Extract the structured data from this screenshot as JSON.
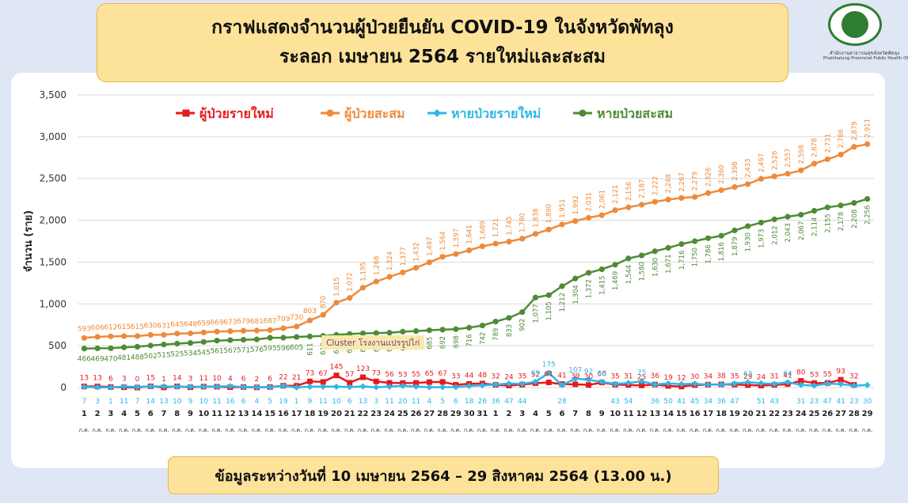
{
  "header": {
    "title_line1": "กราฟแสดงจำนวนผู้ป่วยยืนยัน COVID-19 ในจังหวัดพัทลุง",
    "title_line2": "ระลอก เมษายน 2564 รายใหม่และสะสม"
  },
  "logo": {
    "icon": "provincial-health-office-seal",
    "org_thai": "สำนักงานสาธารณสุขจังหวัดพัทลุง",
    "org_english": "Phatthalung Provincial Public Health Office"
  },
  "footer": {
    "text": "ข้อมูลระหว่างวันที่ 10 เมษายน 2564 – 29 สิงหาคม 2564 (13.00 น.)"
  },
  "chart_data": {
    "type": "line",
    "title": "",
    "xlabel": "",
    "ylabel": "จำนวน (ราย)",
    "ylim": [
      0,
      3500
    ],
    "yticks": [
      0,
      500,
      1000,
      1500,
      2000,
      2500,
      3000,
      3500
    ],
    "grid": true,
    "legend_position": "top",
    "annotation": "Cluster โรงงานแปรรูปไก่",
    "x_labels": [
      "1",
      "2",
      "3",
      "4",
      "5",
      "6",
      "7",
      "8",
      "9",
      "10",
      "11",
      "12",
      "13",
      "14",
      "15",
      "16",
      "17",
      "18",
      "19",
      "20",
      "21",
      "22",
      "23",
      "24",
      "25",
      "26",
      "27",
      "28",
      "29",
      "30",
      "31",
      "1",
      "2",
      "3",
      "4",
      "5",
      "6",
      "7",
      "8",
      "9",
      "10",
      "11",
      "12",
      "13",
      "14",
      "15",
      "16",
      "17",
      "18",
      "19",
      "20",
      "21",
      "22",
      "23",
      "24",
      "25",
      "26",
      "27",
      "28",
      "29"
    ],
    "month_label": "ก.ค.",
    "series": [
      {
        "name": "ผู้ป่วยรายใหม่",
        "color": "#e8191c",
        "values": [
          13,
          13,
          6,
          3,
          0,
          15,
          1,
          14,
          3,
          11,
          10,
          4,
          6,
          2,
          6,
          22,
          21,
          73,
          67,
          145,
          57,
          123,
          73,
          56,
          53,
          55,
          65,
          67,
          33,
          44,
          48,
          32,
          24,
          35,
          52,
          61,
          41,
          39,
          30,
          60,
          35,
          31,
          25,
          36,
          19,
          12,
          30,
          34,
          38,
          35,
          29,
          24,
          31,
          41,
          80,
          53,
          55,
          93,
          32,
          null
        ]
      },
      {
        "name": "ผู้ป่วยสะสม",
        "color": "#ee8a3a",
        "values": [
          593,
          606,
          612,
          615,
          615,
          630,
          631,
          645,
          648,
          659,
          669,
          673,
          679,
          681,
          687,
          709,
          730,
          803,
          870,
          1015,
          1072,
          1195,
          1268,
          1324,
          1377,
          1432,
          1497,
          1564,
          1597,
          1641,
          1689,
          1721,
          1745,
          1780,
          1838,
          1890,
          1951,
          1992,
          2031,
          2061,
          2121,
          2156,
          2187,
          2222,
          2248,
          2267,
          2279,
          2326,
          2360,
          2398,
          2433,
          2497,
          2526,
          2557,
          2598,
          2678,
          2731,
          2786,
          2879,
          2911
        ]
      },
      {
        "name": "หายป่วยรายใหม่",
        "color": "#2bb7e8",
        "values": [
          7,
          3,
          1,
          11,
          7,
          14,
          13,
          10,
          9,
          10,
          11,
          16,
          6,
          4,
          5,
          19,
          1,
          9,
          11,
          10,
          6,
          13,
          3,
          11,
          20,
          11,
          4,
          5,
          6,
          18,
          26,
          36,
          47,
          44,
          69,
          175,
          28,
          107,
          92,
          68,
          43,
          54,
          75,
          36,
          50,
          41,
          45,
          34,
          36,
          47,
          63,
          51,
          43,
          64,
          31,
          23,
          47,
          41,
          23,
          30
        ]
      },
      {
        "name": "หายป่วยสะสม",
        "color": "#4e8b36",
        "values": [
          466,
          469,
          470,
          481,
          488,
          502,
          515,
          525,
          534,
          545,
          561,
          567,
          571,
          576,
          595,
          596,
          605,
          611,
          618,
          630,
          640,
          648,
          652,
          655,
          668,
          675,
          685,
          692,
          698,
          716,
          742,
          789,
          833,
          902,
          1077,
          1105,
          1212,
          1304,
          1372,
          1415,
          1469,
          1544,
          1580,
          1630,
          1671,
          1716,
          1750,
          1786,
          1816,
          1879,
          1930,
          1973,
          2012,
          2043,
          2067,
          2114,
          2155,
          2178,
          2208,
          2256
        ]
      }
    ]
  }
}
